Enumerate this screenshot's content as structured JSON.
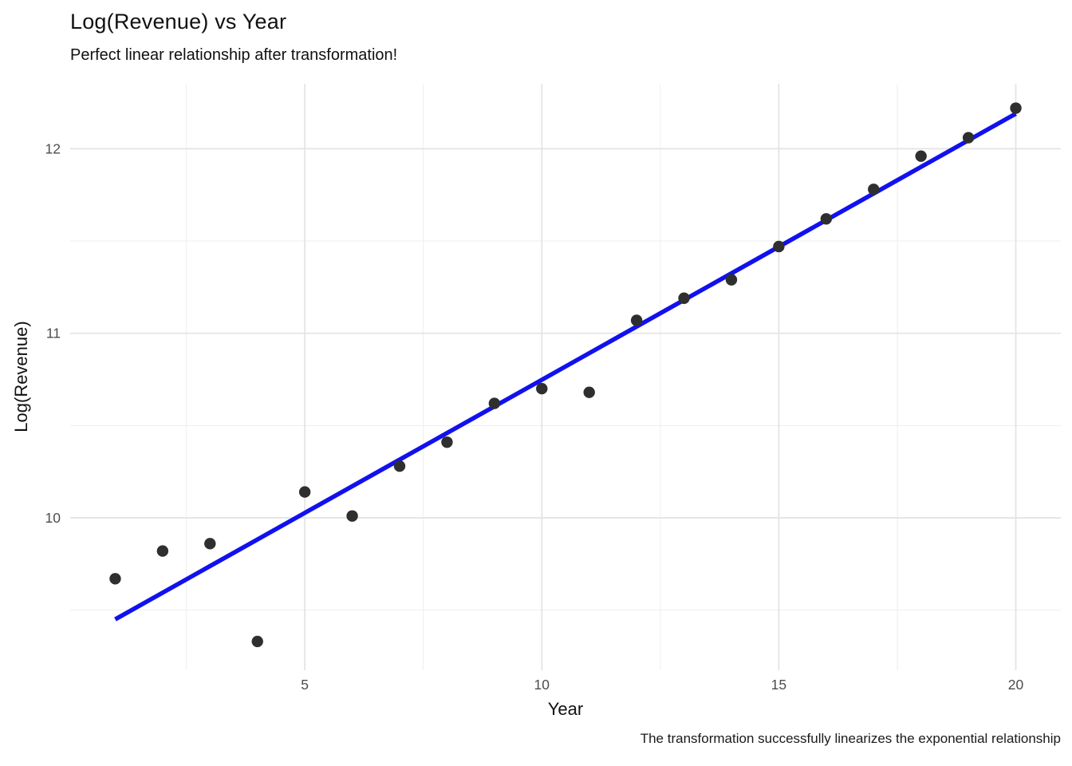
{
  "chart": {
    "title": "Log(Revenue) vs Year",
    "subtitle": "Perfect linear relationship after transformation!",
    "caption": "The transformation successfully linearizes the exponential relationship",
    "xlabel": "Year",
    "ylabel": "Log(Revenue)"
  },
  "chart_data": {
    "type": "scatter",
    "title": "Log(Revenue) vs Year",
    "subtitle": "Perfect linear relationship after transformation!",
    "caption": "The transformation successfully linearizes the exponential relationship",
    "xlabel": "Year",
    "ylabel": "Log(Revenue)",
    "x": [
      1,
      2,
      3,
      4,
      5,
      6,
      7,
      8,
      9,
      10,
      11,
      12,
      13,
      14,
      15,
      16,
      17,
      18,
      19,
      20
    ],
    "series": [
      {
        "name": "log_revenue",
        "values": [
          9.67,
          9.82,
          9.86,
          9.33,
          10.14,
          10.01,
          10.28,
          10.41,
          10.62,
          10.7,
          10.68,
          11.07,
          11.19,
          11.29,
          11.47,
          11.62,
          11.78,
          11.96,
          12.06,
          12.22
        ]
      }
    ],
    "trend_line": {
      "x1": 1,
      "y1": 9.45,
      "x2": 20,
      "y2": 12.19
    },
    "x_ticks": [
      5,
      10,
      15,
      20
    ],
    "y_ticks": [
      10,
      11,
      12
    ],
    "x_minor": [
      2.5,
      7.5,
      12.5,
      17.5
    ],
    "y_minor": [
      9.5,
      10.5,
      11.5
    ],
    "xlim": [
      0.05,
      20.95
    ],
    "ylim": [
      9.174,
      12.352
    ],
    "grid": true,
    "legend": "none",
    "colors": {
      "point": "#2f2f2f",
      "trend": "#1111ee",
      "grid_major": "#e3e3e3",
      "grid_minor": "#eeeeee",
      "tick_label": "#4d4d4d",
      "background": "#ffffff"
    }
  }
}
